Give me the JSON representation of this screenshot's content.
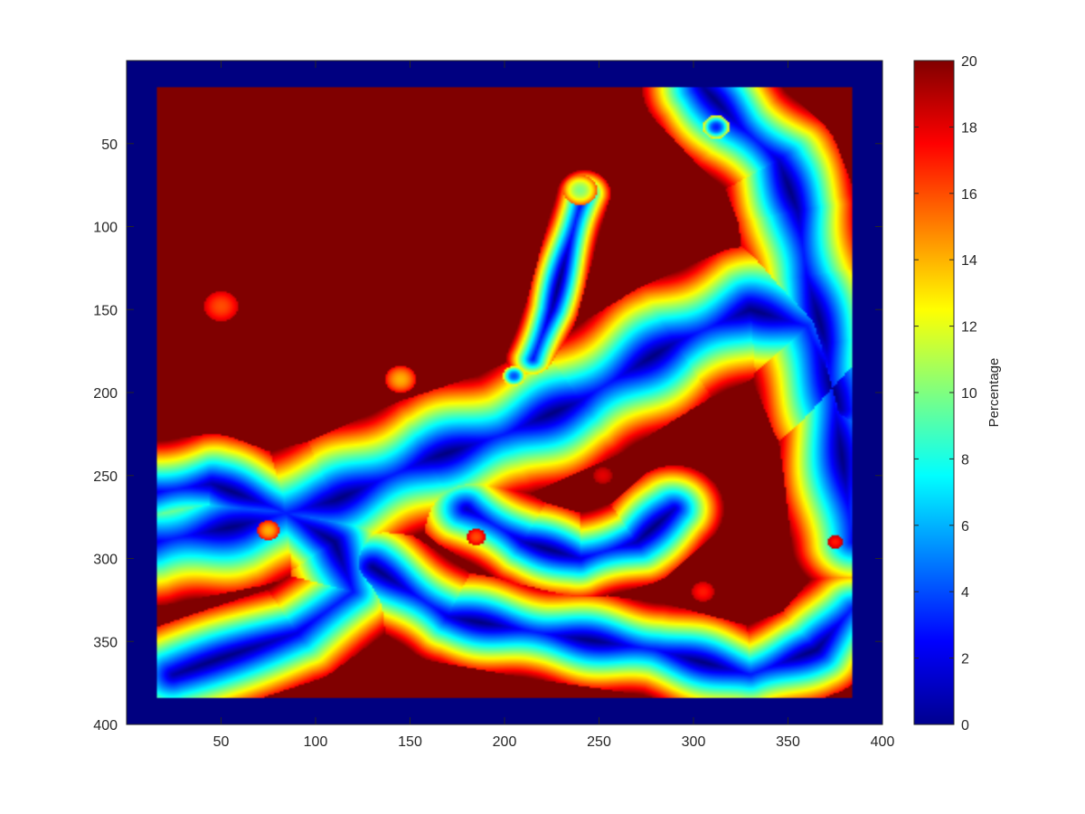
{
  "chart_data": {
    "type": "heatmap",
    "title": "",
    "xlabel": "",
    "ylabel": "",
    "colormap": "jet",
    "xlim": [
      0,
      400
    ],
    "ylim": [
      400,
      0
    ],
    "y_axis_reversed": true,
    "x_ticks": [
      50,
      100,
      150,
      200,
      250,
      300,
      350,
      400
    ],
    "y_ticks": [
      50,
      100,
      150,
      200,
      250,
      300,
      350,
      400
    ],
    "data_extent": {
      "x": [
        16,
        384
      ],
      "y": [
        16,
        384
      ]
    },
    "border_value": 0,
    "background_value": 20,
    "colorbar": {
      "label": "Percentage",
      "range": [
        0,
        20
      ],
      "ticks": [
        0,
        2,
        4,
        6,
        8,
        10,
        12,
        14,
        16,
        18,
        20
      ]
    },
    "regions": [
      {
        "name": "upper-right-wave",
        "path": [
          [
            305,
            16
          ],
          [
            325,
            40
          ],
          [
            345,
            60
          ],
          [
            355,
            90
          ],
          [
            360,
            130
          ],
          [
            370,
            170
          ],
          [
            375,
            210
          ],
          [
            380,
            250
          ],
          [
            384,
            290
          ]
        ],
        "halfwidth": 32
      },
      {
        "name": "diagonal-main-wave",
        "path": [
          [
            16,
            290
          ],
          [
            60,
            280
          ],
          [
            110,
            265
          ],
          [
            160,
            240
          ],
          [
            200,
            225
          ],
          [
            240,
            205
          ],
          [
            290,
            170
          ],
          [
            330,
            150
          ],
          [
            360,
            160
          ],
          [
            378,
            210
          ]
        ],
        "halfwidth": 38
      },
      {
        "name": "lower-arc-wave",
        "path": [
          [
            130,
            305
          ],
          [
            170,
            335
          ],
          [
            220,
            345
          ],
          [
            280,
            355
          ],
          [
            330,
            370
          ],
          [
            365,
            355
          ],
          [
            384,
            330
          ]
        ],
        "halfwidth": 28
      },
      {
        "name": "left-lower-wave",
        "path": [
          [
            16,
            260
          ],
          [
            45,
            255
          ],
          [
            80,
            270
          ],
          [
            110,
            290
          ],
          [
            120,
            320
          ],
          [
            90,
            345
          ],
          [
            50,
            360
          ],
          [
            25,
            370
          ]
        ],
        "halfwidth": 30
      },
      {
        "name": "center-lower-wave",
        "path": [
          [
            180,
            270
          ],
          [
            210,
            290
          ],
          [
            240,
            300
          ],
          [
            270,
            290
          ],
          [
            290,
            270
          ]
        ],
        "halfwidth": 26
      },
      {
        "name": "mid-spike",
        "path": [
          [
            215,
            180
          ],
          [
            225,
            150
          ],
          [
            232,
            120
          ],
          [
            238,
            95
          ],
          [
            242,
            80
          ]
        ],
        "halfwidth": 14
      }
    ],
    "blobs": [
      {
        "x": 50,
        "y": 148,
        "r": 9,
        "value": 16
      },
      {
        "x": 145,
        "y": 192,
        "r": 8,
        "value": 14
      },
      {
        "x": 240,
        "y": 78,
        "r": 9,
        "value": 10
      },
      {
        "x": 75,
        "y": 283,
        "r": 6,
        "value": 14
      },
      {
        "x": 185,
        "y": 287,
        "r": 5,
        "value": 16
      },
      {
        "x": 305,
        "y": 320,
        "r": 6,
        "value": 17
      },
      {
        "x": 375,
        "y": 290,
        "r": 4,
        "value": 17
      },
      {
        "x": 205,
        "y": 190,
        "r": 6,
        "value": 4
      },
      {
        "x": 312,
        "y": 40,
        "r": 7,
        "value": 3
      },
      {
        "x": 252,
        "y": 250,
        "r": 5,
        "value": 18
      }
    ]
  }
}
